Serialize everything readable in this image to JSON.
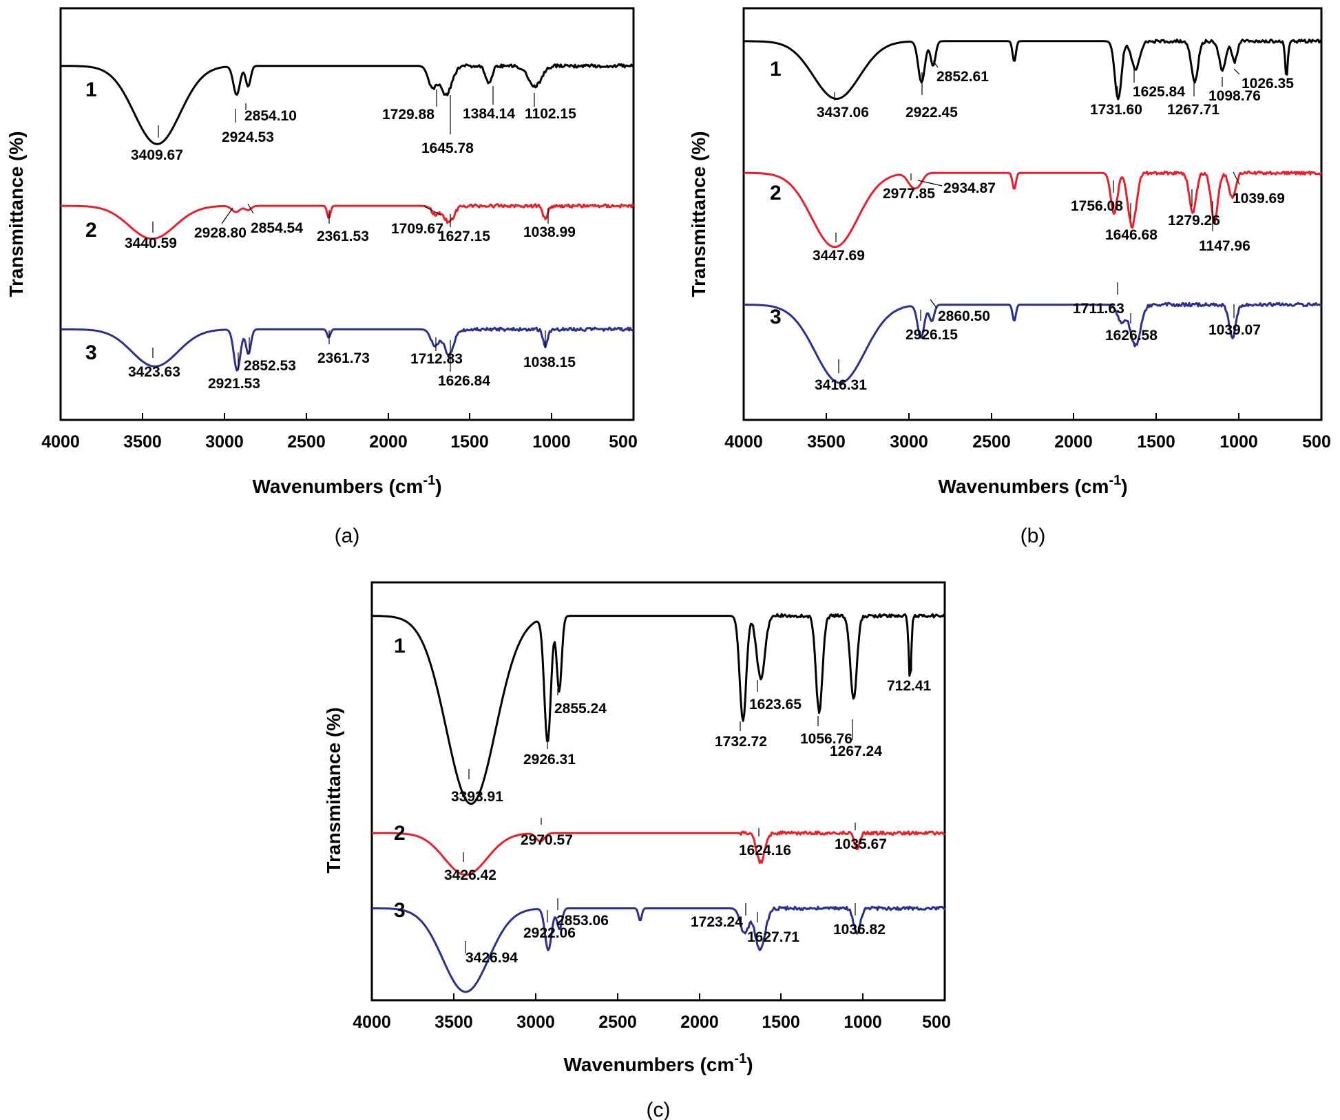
{
  "chart_data": [
    {
      "type": "line",
      "panel": "(a)",
      "xlabel": "Wavenumbers (cm-1)",
      "ylabel": "Transmittance (%)",
      "xlim": [
        4000,
        500
      ],
      "x_ticks": [
        "4000",
        "3500",
        "3000",
        "2500",
        "2000",
        "1500",
        "1000",
        "500"
      ],
      "series": [
        {
          "name": "1",
          "color": "#000000",
          "baseline": 0.14,
          "bands": [
            [
              3409.67,
              0.19,
              140
            ],
            [
              2924.53,
              0.07,
              20
            ],
            [
              2854.1,
              0.05,
              15
            ],
            [
              1729.88,
              0.05,
              25
            ],
            [
              1645.78,
              0.07,
              35
            ],
            [
              1384.14,
              0.04,
              20
            ],
            [
              1102.15,
              0.05,
              40
            ]
          ],
          "peaks": [
            "3409.67",
            "2924.53",
            "2854.10",
            "1729.88",
            "1645.78",
            "1384.14",
            "1102.15"
          ]
        },
        {
          "name": "2",
          "color": "#e8202a",
          "baseline": 0.48,
          "bands": [
            [
              3440.59,
              0.08,
              140
            ],
            [
              2928.8,
              0.015,
              25
            ],
            [
              2854.54,
              0.01,
              20
            ],
            [
              2361.53,
              0.03,
              10
            ],
            [
              1709.67,
              0.02,
              25
            ],
            [
              1627.15,
              0.04,
              30
            ],
            [
              1038.99,
              0.03,
              15
            ]
          ],
          "peaks": [
            "3440.59",
            "2928.80",
            "2854.54",
            "2361.53",
            "1709.67",
            "1627.15",
            "1038.99"
          ]
        },
        {
          "name": "3",
          "color": "#2b2f8f",
          "baseline": 0.78,
          "bands": [
            [
              3423.63,
              0.09,
              140
            ],
            [
              2921.53,
              0.1,
              20
            ],
            [
              2852.53,
              0.06,
              15
            ],
            [
              2361.73,
              0.02,
              10
            ],
            [
              1712.83,
              0.04,
              25
            ],
            [
              1626.84,
              0.06,
              30
            ],
            [
              1038.15,
              0.04,
              15
            ]
          ],
          "peaks": [
            "3423.63",
            "2921.53",
            "2852.53",
            "2361.73",
            "1712.83",
            "1626.84",
            "1038.15"
          ]
        }
      ]
    },
    {
      "type": "line",
      "panel": "(b)",
      "xlabel": "Wavenumbers (cm-1)",
      "ylabel": "Transmittance (%)",
      "xlim": [
        4000,
        500
      ],
      "x_ticks": [
        "4000",
        "3500",
        "3000",
        "2500",
        "2000",
        "1500",
        "1000",
        "500"
      ],
      "series": [
        {
          "name": "1",
          "color": "#000000",
          "baseline": 0.08,
          "bands": [
            [
              3437.06,
              0.14,
              140
            ],
            [
              2922.45,
              0.1,
              20
            ],
            [
              2852.61,
              0.06,
              15
            ],
            [
              2361.0,
              0.05,
              10
            ],
            [
              1731.6,
              0.14,
              20
            ],
            [
              1625.84,
              0.07,
              25
            ],
            [
              1267.71,
              0.1,
              20
            ],
            [
              1098.76,
              0.07,
              20
            ],
            [
              1026.35,
              0.05,
              15
            ],
            [
              712.0,
              0.09,
              8
            ]
          ],
          "peaks": [
            "3437.06",
            "2922.45",
            "2852.61",
            "1731.60",
            "1625.84",
            "1267.71",
            "1098.76",
            "1026.35"
          ]
        },
        {
          "name": "2",
          "color": "#e8202a",
          "baseline": 0.4,
          "bands": [
            [
              3447.69,
              0.18,
              140
            ],
            [
              2977.85,
              0.03,
              30
            ],
            [
              2934.87,
              0.02,
              25
            ],
            [
              2361.0,
              0.04,
              10
            ],
            [
              1756.08,
              0.1,
              20
            ],
            [
              1646.68,
              0.13,
              25
            ],
            [
              1279.26,
              0.1,
              20
            ],
            [
              1147.96,
              0.12,
              20
            ],
            [
              1039.69,
              0.06,
              20
            ]
          ],
          "peaks": [
            "2977.85",
            "2934.87",
            "1756.08",
            "1646.68",
            "1279.26",
            "1147.96",
            "1039.69",
            "3447.69"
          ]
        },
        {
          "name": "3",
          "color": "#2b2f8f",
          "baseline": 0.72,
          "bands": [
            [
              3416.31,
              0.19,
              150
            ],
            [
              2926.15,
              0.08,
              20
            ],
            [
              2860.5,
              0.04,
              15
            ],
            [
              2361.0,
              0.04,
              10
            ],
            [
              1711.63,
              0.04,
              25
            ],
            [
              1626.58,
              0.1,
              30
            ],
            [
              1039.07,
              0.08,
              20
            ]
          ],
          "peaks": [
            "2926.15",
            "2860.50",
            "1711.63",
            "1626.58",
            "1039.07",
            "3416.31"
          ]
        }
      ]
    },
    {
      "type": "line",
      "panel": "(c)",
      "xlabel": "Wavenumbers (cm-1)",
      "ylabel": "Transmittance (%)",
      "xlim": [
        4000,
        500
      ],
      "x_ticks": [
        "4000",
        "3500",
        "3000",
        "2500",
        "2000",
        "1500",
        "1000",
        "500"
      ],
      "series": [
        {
          "name": "1",
          "color": "#000000",
          "baseline": 0.08,
          "bands": [
            [
              3393.91,
              0.45,
              150
            ],
            [
              2926.31,
              0.3,
              20
            ],
            [
              2855.24,
              0.18,
              15
            ],
            [
              1732.72,
              0.25,
              20
            ],
            [
              1623.65,
              0.15,
              25
            ],
            [
              1267.24,
              0.23,
              20
            ],
            [
              1056.76,
              0.2,
              20
            ],
            [
              712.41,
              0.15,
              8
            ]
          ],
          "peaks": [
            "3393.91",
            "2926.31",
            "2855.24",
            "1732.72",
            "1623.65",
            "1056.76",
            "1267.24",
            "712.41"
          ]
        },
        {
          "name": "2",
          "color": "#e8202a",
          "baseline": 0.6,
          "bands": [
            [
              3426.42,
              0.1,
              130
            ],
            [
              2970.57,
              0.02,
              25
            ],
            [
              1624.16,
              0.07,
              25
            ],
            [
              1035.67,
              0.04,
              15
            ]
          ],
          "peaks": [
            "3426.42",
            "2970.57",
            "1624.16",
            "1035.67"
          ]
        },
        {
          "name": "3",
          "color": "#2b2f8f",
          "baseline": 0.78,
          "bands": [
            [
              3426.94,
              0.2,
              140
            ],
            [
              2922.06,
              0.1,
              20
            ],
            [
              2853.06,
              0.05,
              15
            ],
            [
              2361.0,
              0.03,
              10
            ],
            [
              1723.24,
              0.06,
              25
            ],
            [
              1627.71,
              0.1,
              30
            ],
            [
              1036.82,
              0.06,
              20
            ]
          ],
          "peaks": [
            "3426.94",
            "2922.06",
            "2853.06",
            "1723.24",
            "1627.71",
            "1036.82"
          ]
        }
      ]
    }
  ]
}
